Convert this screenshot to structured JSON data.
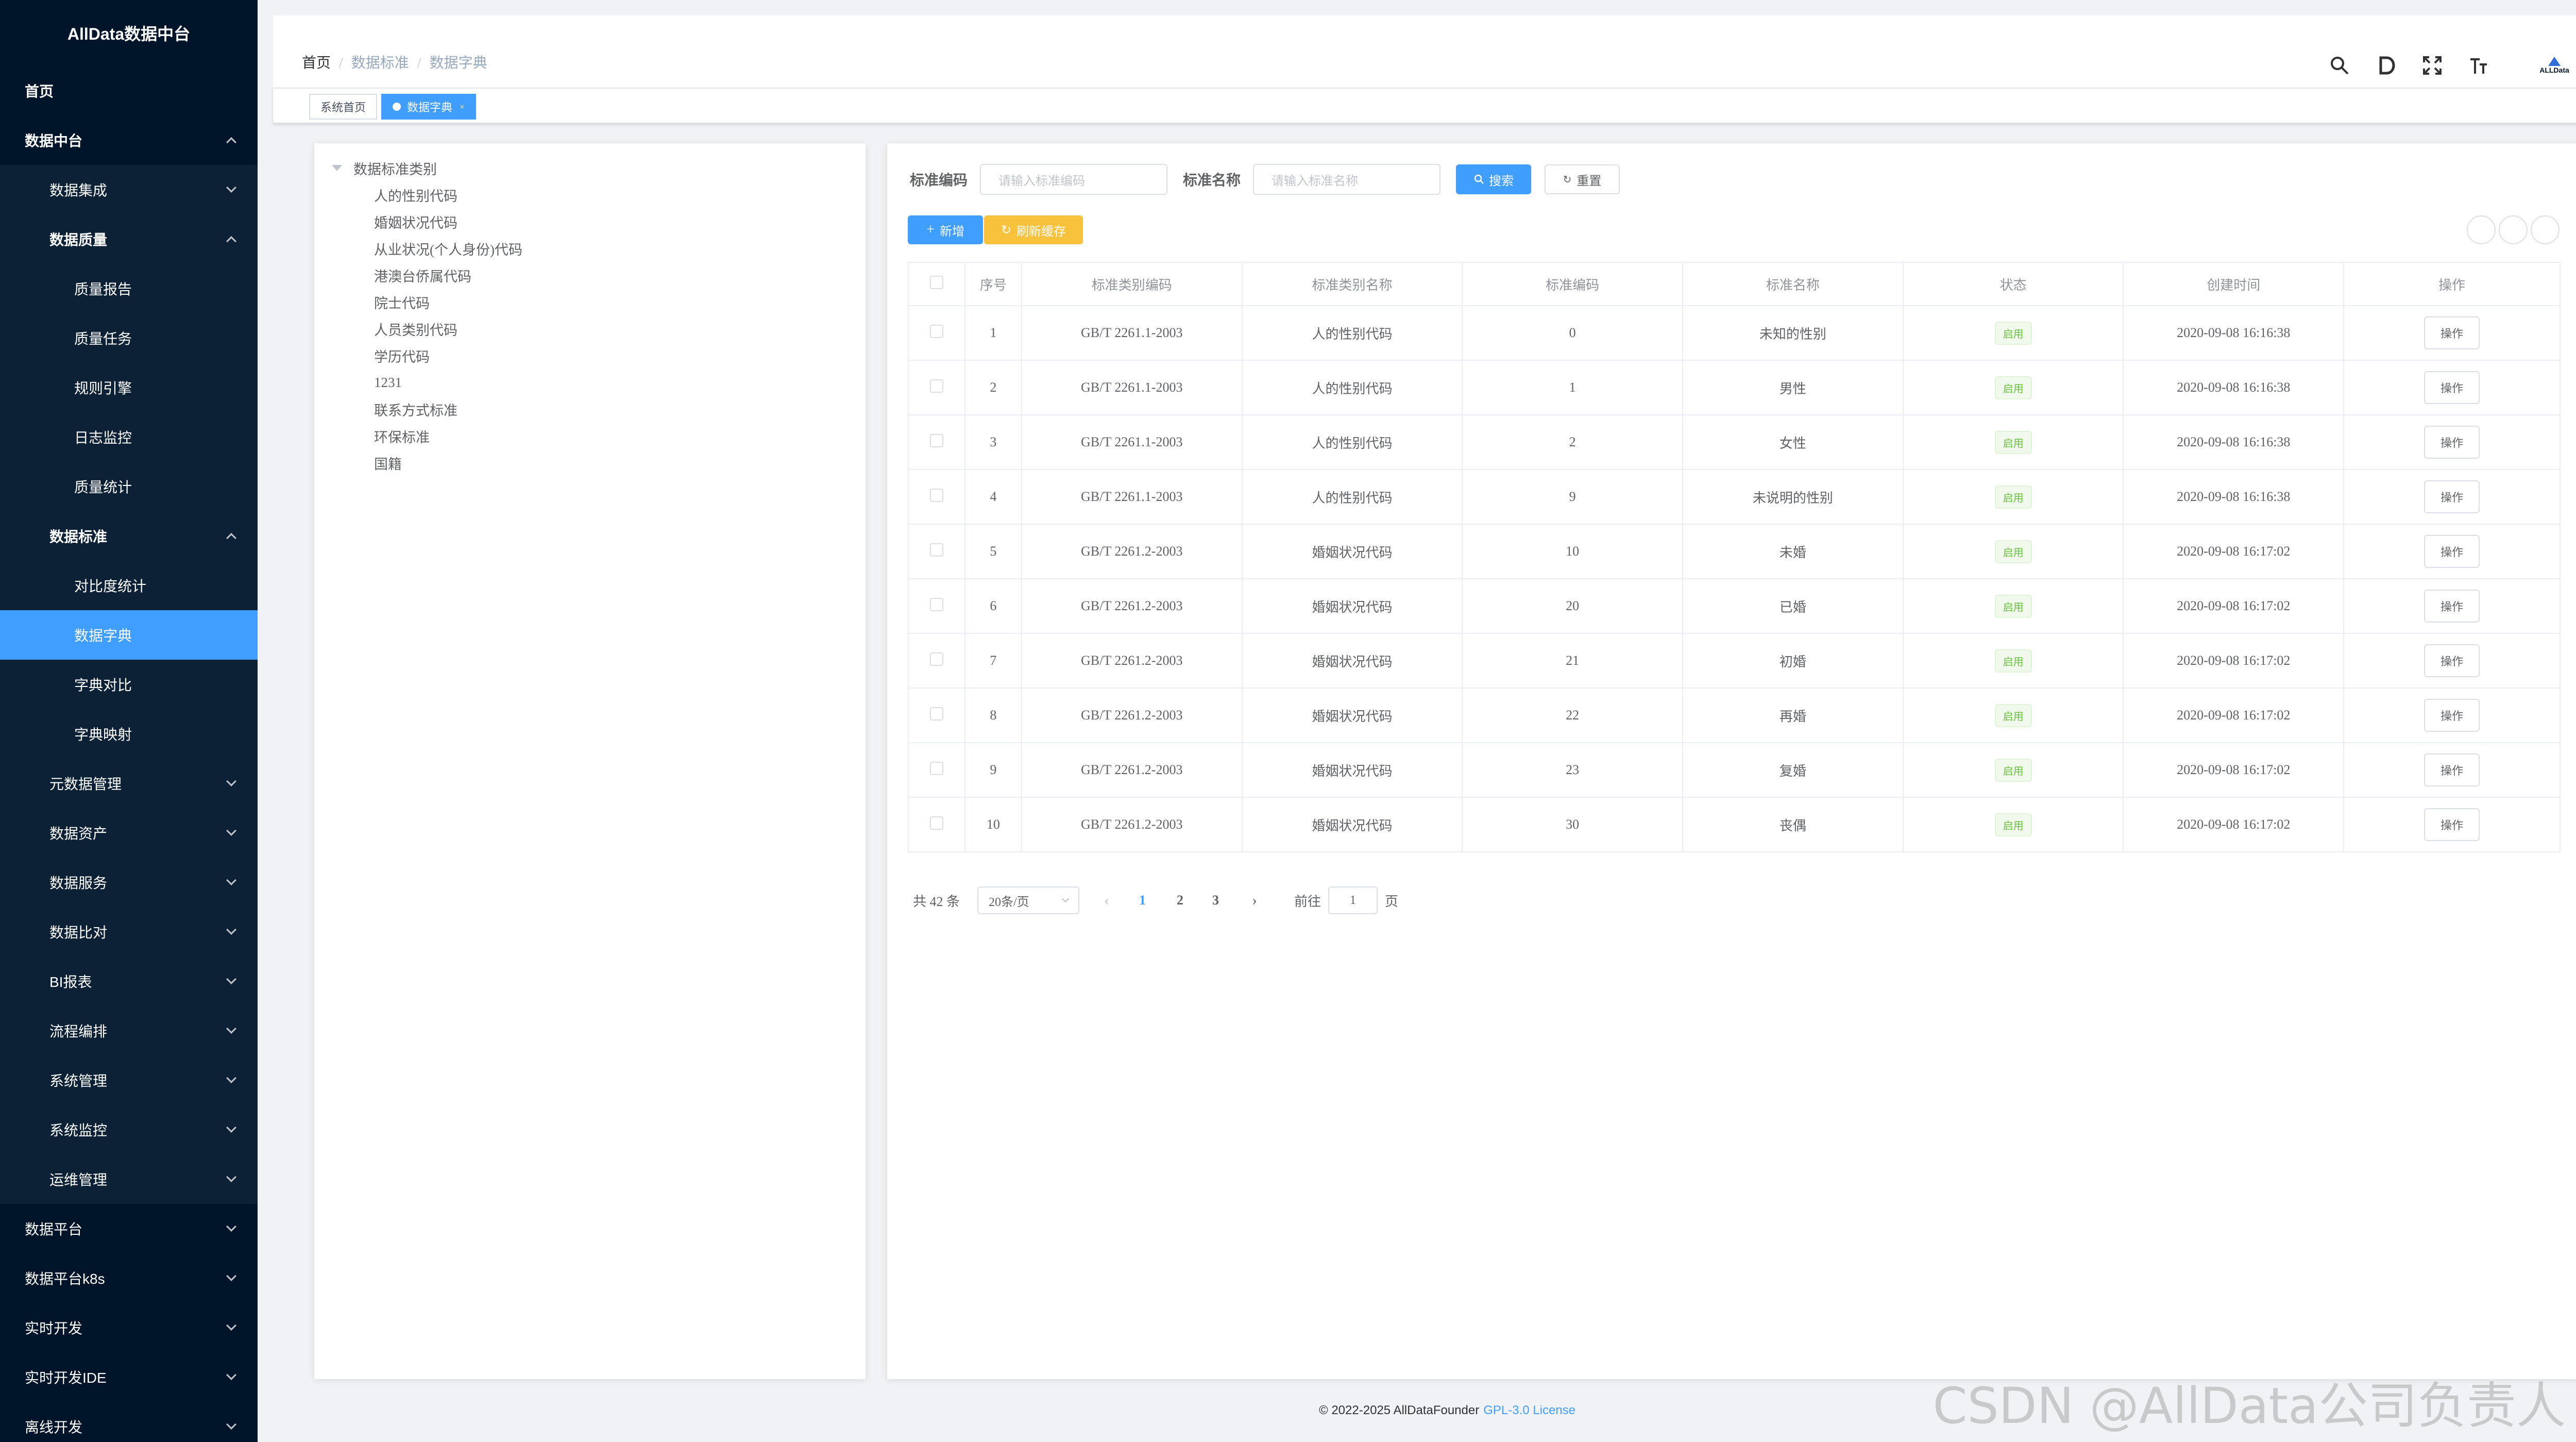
{
  "app": {
    "title": "AllData数据中台"
  },
  "sidebar": {
    "items": [
      {
        "label": "首页",
        "level": 1,
        "bold": true,
        "chevron": "none"
      },
      {
        "label": "数据中台",
        "level": 1,
        "bold": true,
        "chevron": "up"
      },
      {
        "label": "数据集成",
        "level": 2,
        "bold": false,
        "chevron": "down"
      },
      {
        "label": "数据质量",
        "level": 2,
        "bold": true,
        "chevron": "up"
      },
      {
        "label": "质量报告",
        "level": 3,
        "bold": false,
        "chevron": "none"
      },
      {
        "label": "质量任务",
        "level": 3,
        "bold": false,
        "chevron": "none"
      },
      {
        "label": "规则引擎",
        "level": 3,
        "bold": false,
        "chevron": "none"
      },
      {
        "label": "日志监控",
        "level": 3,
        "bold": false,
        "chevron": "none"
      },
      {
        "label": "质量统计",
        "level": 3,
        "bold": false,
        "chevron": "none"
      },
      {
        "label": "数据标准",
        "level": 2,
        "bold": true,
        "chevron": "up"
      },
      {
        "label": "对比度统计",
        "level": 3,
        "bold": false,
        "chevron": "none"
      },
      {
        "label": "数据字典",
        "level": 3,
        "bold": false,
        "chevron": "none",
        "active": true
      },
      {
        "label": "字典对比",
        "level": 3,
        "bold": false,
        "chevron": "none"
      },
      {
        "label": "字典映射",
        "level": 3,
        "bold": false,
        "chevron": "none"
      },
      {
        "label": "元数据管理",
        "level": 2,
        "bold": false,
        "chevron": "down"
      },
      {
        "label": "数据资产",
        "level": 2,
        "bold": false,
        "chevron": "down"
      },
      {
        "label": "数据服务",
        "level": 2,
        "bold": false,
        "chevron": "down"
      },
      {
        "label": "数据比对",
        "level": 2,
        "bold": false,
        "chevron": "down"
      },
      {
        "label": "BI报表",
        "level": 2,
        "bold": false,
        "chevron": "down"
      },
      {
        "label": "流程编排",
        "level": 2,
        "bold": false,
        "chevron": "down"
      },
      {
        "label": "系统管理",
        "level": 2,
        "bold": false,
        "chevron": "down"
      },
      {
        "label": "系统监控",
        "level": 2,
        "bold": false,
        "chevron": "down"
      },
      {
        "label": "运维管理",
        "level": 2,
        "bold": false,
        "chevron": "down"
      },
      {
        "label": "数据平台",
        "level": 1,
        "bold": false,
        "chevron": "down"
      },
      {
        "label": "数据平台k8s",
        "level": 1,
        "bold": false,
        "chevron": "down"
      },
      {
        "label": "实时开发",
        "level": 1,
        "bold": false,
        "chevron": "down"
      },
      {
        "label": "实时开发IDE",
        "level": 1,
        "bold": false,
        "chevron": "down"
      },
      {
        "label": "离线开发",
        "level": 1,
        "bold": false,
        "chevron": "down"
      }
    ]
  },
  "header": {
    "breadcrumb": [
      "首页",
      "数据标准",
      "数据字典"
    ],
    "avatar_text": "ALLData",
    "tools": [
      "search-icon",
      "document-icon",
      "fullscreen-icon",
      "font-size-icon"
    ]
  },
  "tags": [
    {
      "label": "系统首页",
      "active": false
    },
    {
      "label": "数据字典",
      "active": true,
      "close": "×"
    }
  ],
  "tree": {
    "root": "数据标准类别",
    "children": [
      "人的性别代码",
      "婚姻状况代码",
      "从业状况(个人身份)代码",
      "港澳台侨属代码",
      "院士代码",
      "人员类别代码",
      "学历代码",
      "1231",
      "联系方式标准",
      "环保标准",
      "国籍"
    ]
  },
  "search": {
    "code_label": "标准编码",
    "code_placeholder": "请输入标准编码",
    "name_label": "标准名称",
    "name_placeholder": "请输入标准名称",
    "search_button": "搜索",
    "reset_button": "重置"
  },
  "toolbar": {
    "add_button": "新增",
    "refresh_button": "刷新缓存"
  },
  "table": {
    "headers": [
      "序号",
      "标准类别编码",
      "标准类别名称",
      "标准编码",
      "标准名称",
      "状态",
      "创建时间",
      "操作"
    ],
    "rows": [
      {
        "no": "1",
        "cat_code": "GB/T 2261.1-2003",
        "cat_name": "人的性别代码",
        "code": "0",
        "name": "未知的性别",
        "status": "启用",
        "created": "2020-09-08 16:16:38",
        "op": "操作"
      },
      {
        "no": "2",
        "cat_code": "GB/T 2261.1-2003",
        "cat_name": "人的性别代码",
        "code": "1",
        "name": "男性",
        "status": "启用",
        "created": "2020-09-08 16:16:38",
        "op": "操作"
      },
      {
        "no": "3",
        "cat_code": "GB/T 2261.1-2003",
        "cat_name": "人的性别代码",
        "code": "2",
        "name": "女性",
        "status": "启用",
        "created": "2020-09-08 16:16:38",
        "op": "操作"
      },
      {
        "no": "4",
        "cat_code": "GB/T 2261.1-2003",
        "cat_name": "人的性别代码",
        "code": "9",
        "name": "未说明的性别",
        "status": "启用",
        "created": "2020-09-08 16:16:38",
        "op": "操作"
      },
      {
        "no": "5",
        "cat_code": "GB/T 2261.2-2003",
        "cat_name": "婚姻状况代码",
        "code": "10",
        "name": "未婚",
        "status": "启用",
        "created": "2020-09-08 16:17:02",
        "op": "操作"
      },
      {
        "no": "6",
        "cat_code": "GB/T 2261.2-2003",
        "cat_name": "婚姻状况代码",
        "code": "20",
        "name": "已婚",
        "status": "启用",
        "created": "2020-09-08 16:17:02",
        "op": "操作"
      },
      {
        "no": "7",
        "cat_code": "GB/T 2261.2-2003",
        "cat_name": "婚姻状况代码",
        "code": "21",
        "name": "初婚",
        "status": "启用",
        "created": "2020-09-08 16:17:02",
        "op": "操作"
      },
      {
        "no": "8",
        "cat_code": "GB/T 2261.2-2003",
        "cat_name": "婚姻状况代码",
        "code": "22",
        "name": "再婚",
        "status": "启用",
        "created": "2020-09-08 16:17:02",
        "op": "操作"
      },
      {
        "no": "9",
        "cat_code": "GB/T 2261.2-2003",
        "cat_name": "婚姻状况代码",
        "code": "23",
        "name": "复婚",
        "status": "启用",
        "created": "2020-09-08 16:17:02",
        "op": "操作"
      },
      {
        "no": "10",
        "cat_code": "GB/T 2261.2-2003",
        "cat_name": "婚姻状况代码",
        "code": "30",
        "name": "丧偶",
        "status": "启用",
        "created": "2020-09-08 16:17:02",
        "op": "操作"
      }
    ]
  },
  "pagination": {
    "total": "共 42 条",
    "page_size": "20条/页",
    "pages": [
      "1",
      "2",
      "3"
    ],
    "current": "1",
    "goto_label": "前往",
    "goto_value": "1",
    "goto_suffix": "页"
  },
  "footer": {
    "copyright": "© 2022-2025 AllDataFounder",
    "license": "GPL-3.0 License"
  },
  "watermark": "CSDN @AllData公司负责人",
  "colors": {
    "sidebar": "#001529",
    "submenu": "#0c2135",
    "active": "#409eff",
    "warning": "#f9c23c",
    "success": "#67c23a"
  }
}
